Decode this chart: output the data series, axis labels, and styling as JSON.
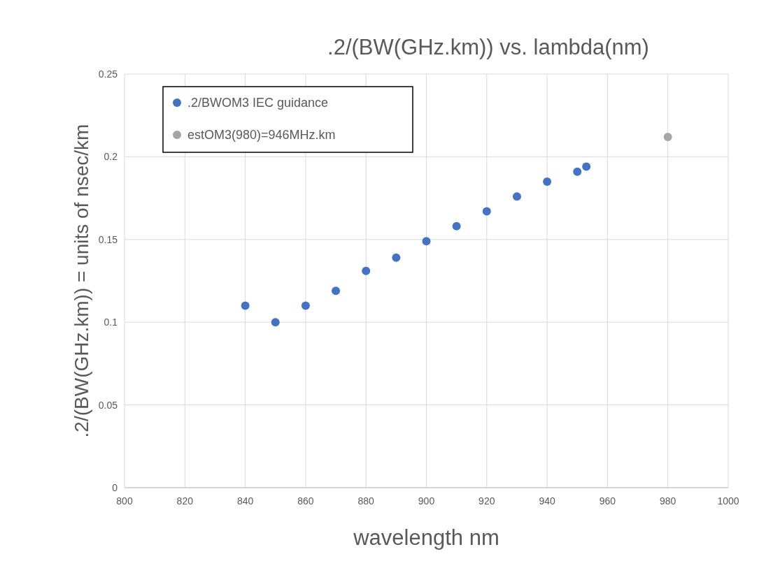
{
  "chart_data": {
    "type": "scatter",
    "title": ".2/(BW(GHz.km)) vs. lambda(nm)",
    "xlabel": "wavelength nm",
    "ylabel": ".2/(BW(GHz.km)) = units of nsec/km",
    "series": [
      {
        "name": ".2/BWOM3 IEC guidance",
        "color": "#4472c4",
        "x": [
          840,
          850,
          860,
          870,
          880,
          890,
          900,
          910,
          920,
          930,
          940,
          950,
          953
        ],
        "values": [
          0.11,
          0.1,
          0.11,
          0.119,
          0.131,
          0.139,
          0.149,
          0.158,
          0.167,
          0.176,
          0.185,
          0.191,
          0.194
        ]
      },
      {
        "name": "estOM3(980)=946MHz.km",
        "color": "#a5a5a5",
        "x": [
          980
        ],
        "values": [
          0.212
        ]
      }
    ],
    "xlim": [
      800,
      1000
    ],
    "xticks": [
      800,
      820,
      840,
      860,
      880,
      900,
      920,
      940,
      960,
      980,
      1000
    ],
    "ylim": [
      0,
      0.25
    ],
    "yticks": [
      0,
      0.05,
      0.1,
      0.15,
      0.2,
      0.25
    ],
    "grid": true,
    "legend": "top left",
    "marker": "circle"
  }
}
